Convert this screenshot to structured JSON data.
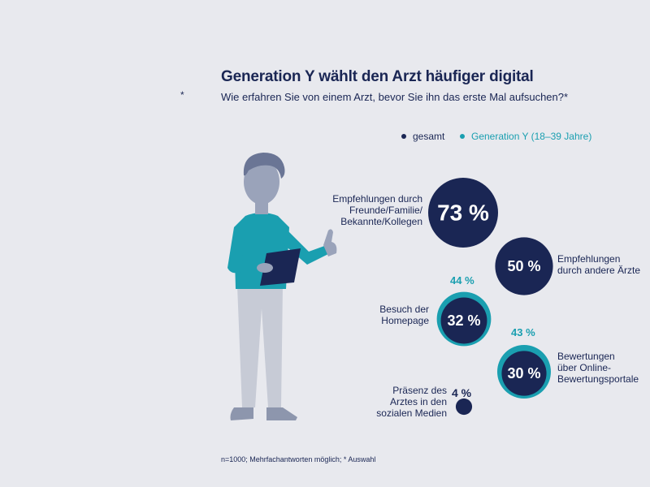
{
  "title": "Generation Y wählt den Arzt häufiger digital",
  "subtitle": "Wie erfahren Sie von einem Arzt, bevor Sie ihn das erste Mal aufsuchen?*",
  "star": "*",
  "legend": {
    "total": {
      "label": "gesamt",
      "color": "#1a2654"
    },
    "geny": {
      "label": "Generation Y (18–39 Jahre)",
      "color": "#1a9fb0"
    }
  },
  "footnote": "n=1000; Mehrfachantworten möglich; * Auswahl",
  "colors": {
    "total": "#1a2654",
    "geny": "#1a9fb0",
    "background": "#e8e9ee"
  },
  "chart_data": {
    "type": "bubble",
    "title": "Generation Y wählt den Arzt häufiger digital",
    "subtitle": "Wie erfahren Sie von einem Arzt, bevor Sie ihn das erste Mal aufsuchen?*",
    "series": [
      {
        "name": "gesamt",
        "values": [
          73,
          50,
          32,
          30,
          4
        ]
      },
      {
        "name": "Generation Y (18–39 Jahre)",
        "values": [
          null,
          null,
          44,
          43,
          null
        ]
      }
    ],
    "categories": [
      "Empfehlungen durch Freunde/Familie/ Bekannte/Kollegen",
      "Empfehlungen durch andere Ärzte",
      "Besuch der Homepage",
      "Bewertungen über Online- Bewertungsportale",
      "Präsenz des Arztes in den sozialen Medien"
    ],
    "items": [
      {
        "label_lines": [
          "Empfehlungen durch",
          "Freunde/Familie/",
          "Bekannte/Kollegen"
        ],
        "total": 73,
        "total_text": "73 %",
        "geny": null,
        "geny_text": ""
      },
      {
        "label_lines": [
          "Empfehlungen",
          "durch andere Ärzte"
        ],
        "total": 50,
        "total_text": "50 %",
        "geny": null,
        "geny_text": ""
      },
      {
        "label_lines": [
          "Besuch der",
          "Homepage"
        ],
        "total": 32,
        "total_text": "32 %",
        "geny": 44,
        "geny_text": "44 %"
      },
      {
        "label_lines": [
          "Bewertungen",
          "über Online-",
          "Bewertungsportale"
        ],
        "total": 30,
        "total_text": "30 %",
        "geny": 43,
        "geny_text": "43 %"
      },
      {
        "label_lines": [
          "Präsenz des",
          "Arztes in den",
          "sozialen Medien"
        ],
        "total": 4,
        "total_text": "4 %",
        "geny": null,
        "geny_text": ""
      }
    ]
  }
}
